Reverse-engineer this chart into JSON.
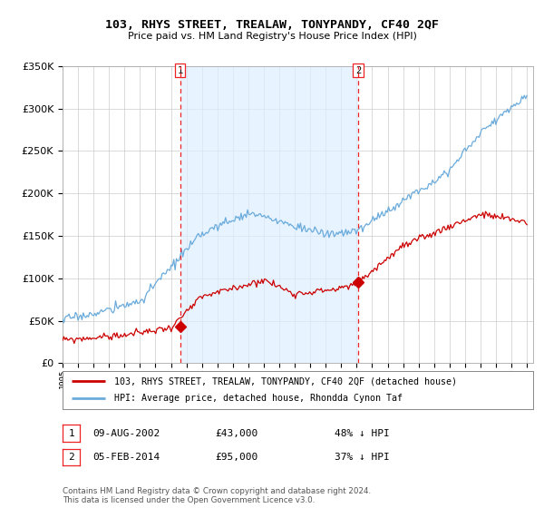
{
  "title": "103, RHYS STREET, TREALAW, TONYPANDY, CF40 2QF",
  "subtitle": "Price paid vs. HM Land Registry's House Price Index (HPI)",
  "legend_line1": "103, RHYS STREET, TREALAW, TONYPANDY, CF40 2QF (detached house)",
  "legend_line2": "HPI: Average price, detached house, Rhondda Cynon Taf",
  "annotation1": [
    "1",
    "09-AUG-2002",
    "£43,000",
    "48% ↓ HPI"
  ],
  "annotation2": [
    "2",
    "05-FEB-2014",
    "£95,000",
    "37% ↓ HPI"
  ],
  "footnote1": "Contains HM Land Registry data © Crown copyright and database right 2024.",
  "footnote2": "This data is licensed under the Open Government Licence v3.0.",
  "sale1_year": 2002.6,
  "sale1_price": 43000,
  "sale2_year": 2014.09,
  "sale2_price": 95000,
  "hpi_color": "#6aabdc",
  "price_color": "#cc0000",
  "marker_color": "#cc0000",
  "vline_color": "#ee2222",
  "shade_color": "#ddeeff",
  "ylim": [
    0,
    350000
  ],
  "yticks": [
    0,
    50000,
    100000,
    150000,
    200000,
    250000,
    300000,
    350000
  ],
  "background_color": "#ffffff",
  "grid_color": "#cccccc",
  "xlim_start": 1995,
  "xlim_end": 2025
}
